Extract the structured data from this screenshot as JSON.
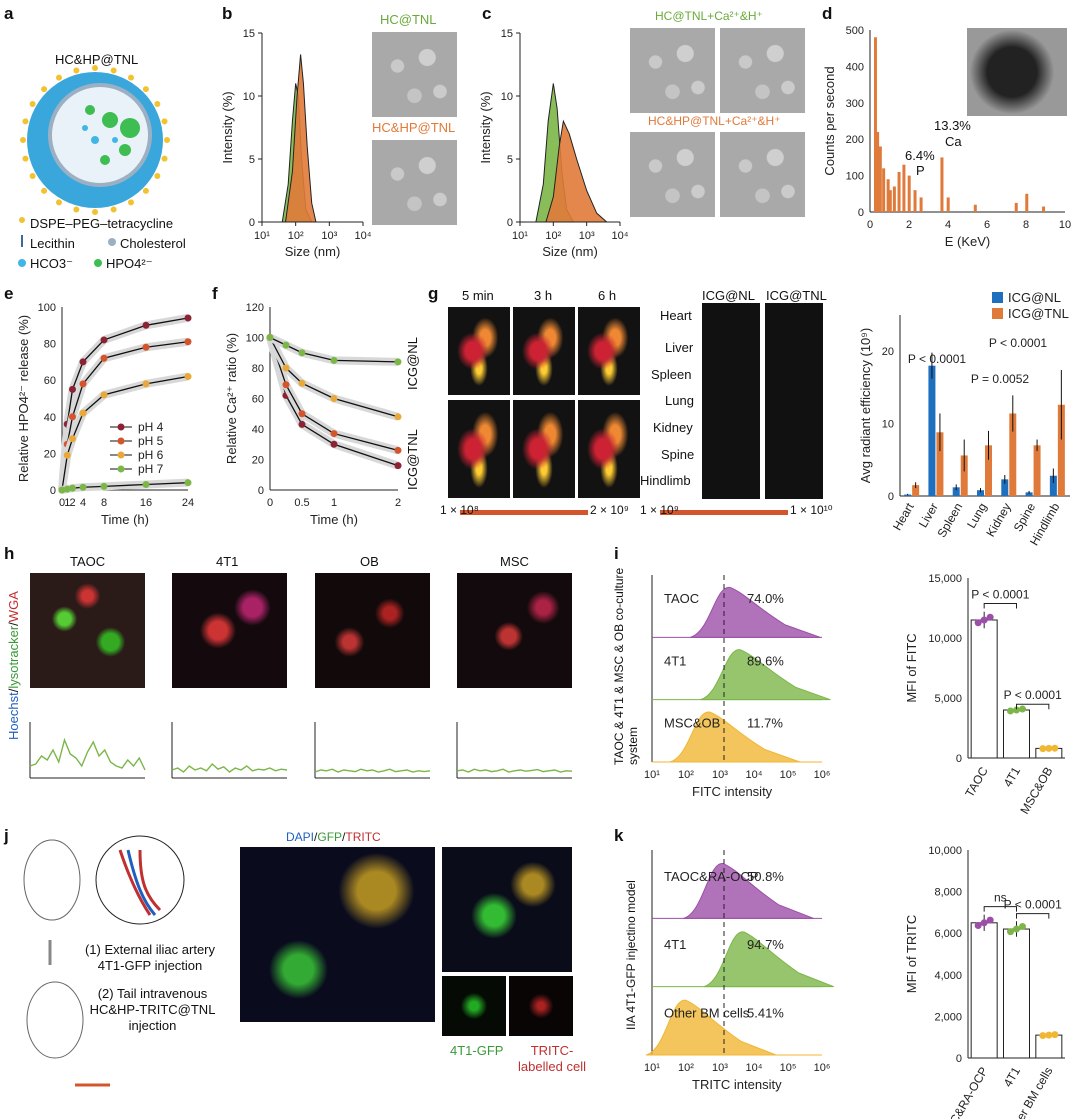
{
  "panels": {
    "a": {
      "letter": "a",
      "title": "HC&HP@TNL",
      "legend": [
        {
          "name": "dspe",
          "text": "DSPE–PEG–tetracycline"
        },
        {
          "name": "lecithin",
          "text": "Lecithin"
        },
        {
          "name": "cholesterol",
          "text": "Cholesterol"
        },
        {
          "name": "hco3",
          "text": "HCO3⁻"
        },
        {
          "name": "hpo4",
          "text": "HPO4²⁻"
        }
      ]
    },
    "b": {
      "letter": "b",
      "label_top": "HC@TNL",
      "label_bottom": "HC&HP@TNL"
    },
    "c": {
      "letter": "c",
      "label_top": "HC@TNL+Ca²⁺&H⁺",
      "label_bottom": "HC&HP@TNL+Ca²⁺&H⁺"
    },
    "d": {
      "letter": "d",
      "annot": [
        {
          "pct": "6.4%",
          "el": "P"
        },
        {
          "pct": "13.3%",
          "el": "Ca"
        }
      ]
    },
    "e": {
      "letter": "e"
    },
    "f": {
      "letter": "f"
    },
    "g": {
      "letter": "g",
      "times": [
        "5 min",
        "3 h",
        "6 h"
      ],
      "rows": [
        "ICG@NL",
        "ICG@TNL"
      ],
      "organ_cols": [
        "ICG@NL",
        "ICG@TNL"
      ],
      "organs": [
        "Heart",
        "Liver",
        "Spleen",
        "Lung",
        "Kidney",
        "Spine",
        "Hindlimb"
      ],
      "scale1": [
        "1 × 10⁸",
        "2 × 10⁹"
      ],
      "scale2": [
        "1 × 10⁹",
        "1 × 10¹⁰"
      ]
    },
    "h": {
      "letter": "h",
      "cols": [
        "TAOC",
        "4T1",
        "OB",
        "MSC"
      ],
      "ylabel_parts": [
        "Hoechst",
        "/",
        "lysotracker",
        "/",
        "WGA"
      ]
    },
    "i": {
      "letter": "i",
      "hist_ylabel": "TAOC & 4T1 & MSC & OB co-culture system"
    },
    "j": {
      "letter": "j",
      "steps": [
        "(1) External iliac artery 4T1-GFP injection",
        "(2) Tail intravenous HC&HP-TRITC@TNL injection"
      ],
      "stain": [
        "DAPI",
        "/",
        "GFP",
        "/",
        "TRITC"
      ],
      "sub_labels": [
        "4T1-GFP",
        "TRITC-labelled cell"
      ]
    },
    "k": {
      "letter": "k",
      "hist_ylabel": "IIA 4T1-GFP injectino model"
    }
  },
  "chart_data": [
    {
      "id": "b",
      "type": "area",
      "xlabel": "Size (nm)",
      "ylabel": "Intensity (%)",
      "xscale": "log",
      "xlim": [
        10,
        10000
      ],
      "ylim": [
        0,
        15
      ],
      "xticks": [
        "10¹",
        "10²",
        "10³",
        "10⁴"
      ],
      "yticks": [
        0,
        5,
        10,
        15
      ],
      "series": [
        {
          "name": "HC@TNL",
          "color": "#7cb648",
          "x": [
            40,
            60,
            80,
            100,
            120,
            150,
            200,
            300
          ],
          "y": [
            0,
            3,
            8,
            11,
            10,
            5,
            1,
            0
          ]
        },
        {
          "name": "HC&HP@TNL",
          "color": "#e07a3a",
          "x": [
            50,
            80,
            110,
            140,
            170,
            220,
            300,
            400
          ],
          "y": [
            0,
            4,
            10,
            13.3,
            11,
            6,
            1.5,
            0
          ]
        }
      ]
    },
    {
      "id": "c",
      "type": "area",
      "xlabel": "Size (nm)",
      "ylabel": "Intensity (%)",
      "xscale": "log",
      "xlim": [
        10,
        10000
      ],
      "ylim": [
        0,
        15
      ],
      "xticks": [
        "10¹",
        "10²",
        "10³",
        "10⁴"
      ],
      "yticks": [
        0,
        5,
        10,
        15
      ],
      "series": [
        {
          "name": "HC@TNL",
          "color": "#7cb648",
          "x": [
            30,
            50,
            70,
            100,
            130,
            180,
            250,
            400
          ],
          "y": [
            0,
            3,
            8,
            11,
            9,
            4,
            1,
            0
          ]
        },
        {
          "name": "HC&HP@TNL",
          "color": "#e07a3a",
          "x": [
            60,
            100,
            150,
            200,
            300,
            500,
            1000,
            2000,
            4000
          ],
          "y": [
            0,
            2,
            6,
            8,
            7,
            5,
            2.5,
            0.7,
            0
          ]
        }
      ]
    },
    {
      "id": "d",
      "type": "bar",
      "xlabel": "E (KeV)",
      "ylabel": "Counts per second",
      "xlim": [
        0,
        10
      ],
      "ylim": [
        0,
        500
      ],
      "xticks": [
        0,
        2,
        4,
        6,
        8,
        10
      ],
      "yticks": [
        0,
        100,
        200,
        300,
        400,
        500
      ],
      "color": "#e07a3a",
      "x": [
        0.28,
        0.39,
        0.53,
        0.7,
        0.93,
        1.04,
        1.25,
        1.49,
        1.74,
        2.01,
        2.31,
        2.62,
        3.69,
        4.01,
        5.4,
        7.5,
        8.04,
        8.9
      ],
      "values": [
        480,
        220,
        180,
        120,
        90,
        60,
        70,
        110,
        130,
        100,
        60,
        40,
        150,
        40,
        20,
        25,
        50,
        15
      ]
    },
    {
      "id": "e",
      "type": "line",
      "xlabel": "Time (h)",
      "ylabel": "Relative HPO4²⁻ release (%)",
      "xlim": [
        0,
        24
      ],
      "ylim": [
        0,
        100
      ],
      "xticks": [
        "0",
        "1",
        "2",
        "4",
        "8",
        "16",
        "24"
      ],
      "xtick_vals": [
        0,
        1,
        2,
        4,
        8,
        16,
        24
      ],
      "yticks": [
        0,
        20,
        40,
        60,
        80,
        100
      ],
      "x": [
        0,
        1,
        2,
        4,
        8,
        16,
        24
      ],
      "series": [
        {
          "name": "pH 4",
          "color": "#8b2335",
          "y": [
            0,
            36,
            55,
            70,
            82,
            90,
            94
          ]
        },
        {
          "name": "pH 5",
          "color": "#d4542c",
          "y": [
            0,
            25,
            40,
            58,
            72,
            78,
            81
          ]
        },
        {
          "name": "pH 6",
          "color": "#e9a83a",
          "y": [
            0,
            19,
            28,
            42,
            52,
            58,
            62
          ]
        },
        {
          "name": "pH 7",
          "color": "#7cb648",
          "y": [
            0,
            0.5,
            1,
            1.5,
            2,
            3,
            4
          ]
        }
      ]
    },
    {
      "id": "f",
      "type": "line",
      "xlabel": "Time (h)",
      "ylabel": "Relative Ca²⁺ ratio (%)",
      "xlim": [
        0,
        2
      ],
      "ylim": [
        0,
        120
      ],
      "xticks": [
        "0",
        "0.5",
        "1",
        "2"
      ],
      "xtick_vals": [
        0,
        0.5,
        1,
        2
      ],
      "yticks": [
        0,
        20,
        40,
        60,
        80,
        100,
        120
      ],
      "x": [
        0,
        0.25,
        0.5,
        1,
        2
      ],
      "series": [
        {
          "name": "pH 4",
          "color": "#8b2335",
          "y": [
            100,
            62,
            43,
            30,
            16
          ]
        },
        {
          "name": "pH 5",
          "color": "#d4542c",
          "y": [
            100,
            69,
            50,
            37,
            26
          ]
        },
        {
          "name": "pH 6",
          "color": "#e9a83a",
          "y": [
            100,
            80,
            70,
            60,
            48
          ]
        },
        {
          "name": "pH 7",
          "color": "#7cb648",
          "y": [
            100,
            95,
            90,
            85,
            84
          ]
        }
      ]
    },
    {
      "id": "g",
      "type": "bar",
      "ylabel": "Avg radiant efficiency (10⁹)",
      "ylim": [
        0,
        25
      ],
      "yticks": [
        0,
        10,
        20
      ],
      "categories": [
        "Heart",
        "Liver",
        "Spleen",
        "Lung",
        "Kidney",
        "Spine",
        "Hindlimb"
      ],
      "series": [
        {
          "name": "ICG@NL",
          "color": "#1f6fbf",
          "values": [
            0.2,
            18,
            1.2,
            0.8,
            2.3,
            0.5,
            2.8
          ],
          "err": [
            0.1,
            1.8,
            0.4,
            0.3,
            0.6,
            0.2,
            1.0
          ]
        },
        {
          "name": "ICG@TNL",
          "color": "#e07a3a",
          "values": [
            1.5,
            8.8,
            5.6,
            7.0,
            11.4,
            7.0,
            12.6
          ],
          "err": [
            0.4,
            2.6,
            2.2,
            2.0,
            2.5,
            0.8,
            4.8
          ]
        }
      ],
      "pvals": [
        {
          "text": "P < 0.0001",
          "pair": "Liver"
        },
        {
          "text": "P = 0.0052",
          "pair": "Kidney"
        },
        {
          "text": "P < 0.0001",
          "pair": "Hindlimb"
        }
      ]
    },
    {
      "id": "h",
      "type": "line",
      "color": "#7cb648",
      "series": [
        {
          "name": "TAOC",
          "y": [
            0.3,
            0.35,
            0.55,
            0.45,
            0.7,
            0.4,
            0.95,
            0.6,
            0.5,
            0.3,
            0.65,
            0.9,
            0.55,
            0.7,
            0.4,
            0.3,
            0.25,
            0.45,
            0.3,
            0.5,
            0.2
          ]
        },
        {
          "name": "4T1",
          "y": [
            0.2,
            0.25,
            0.15,
            0.3,
            0.2,
            0.25,
            0.18,
            0.35,
            0.22,
            0.28,
            0.15,
            0.25,
            0.2,
            0.3,
            0.18,
            0.22,
            0.2,
            0.25,
            0.18,
            0.22,
            0.2
          ]
        },
        {
          "name": "OB",
          "y": [
            0.15,
            0.2,
            0.18,
            0.22,
            0.15,
            0.2,
            0.18,
            0.16,
            0.22,
            0.18,
            0.2,
            0.15,
            0.18,
            0.22,
            0.16,
            0.18,
            0.2,
            0.15,
            0.18,
            0.16,
            0.18
          ]
        },
        {
          "name": "MSC",
          "y": [
            0.18,
            0.2,
            0.15,
            0.22,
            0.18,
            0.2,
            0.16,
            0.18,
            0.22,
            0.15,
            0.18,
            0.2,
            0.17,
            0.19,
            0.21,
            0.16,
            0.18,
            0.2,
            0.15,
            0.18,
            0.17
          ]
        }
      ]
    },
    {
      "id": "i-hist",
      "type": "area",
      "xlabel": "FITC intensity",
      "xticks": [
        "10¹",
        "10²",
        "10³",
        "10⁴",
        "10⁵",
        "10⁶"
      ],
      "rows": [
        {
          "name": "TAOC",
          "pct": "74.0%",
          "color": "#9c4fa8"
        },
        {
          "name": "4T1",
          "pct": "89.6%",
          "color": "#7cb648"
        },
        {
          "name": "MSC&OB",
          "pct": "11.7%",
          "color": "#f0b733"
        }
      ]
    },
    {
      "id": "i-bar",
      "type": "bar",
      "ylabel": "MFI of FITC",
      "ylim": [
        0,
        15000
      ],
      "yticks": [
        "0",
        "5,000",
        "10,000",
        "15,000"
      ],
      "categories": [
        "TAOC",
        "4T1",
        "MSC&OB"
      ],
      "values": [
        11500,
        4000,
        800
      ],
      "colors": [
        "#9c4fa8",
        "#7cb648",
        "#f0b733"
      ],
      "pvals": [
        "P < 0.0001",
        "P < 0.0001"
      ]
    },
    {
      "id": "k-hist",
      "type": "area",
      "xlabel": "TRITC intensity",
      "xticks": [
        "10¹",
        "10²",
        "10³",
        "10⁴",
        "10⁵",
        "10⁶"
      ],
      "rows": [
        {
          "name": "TAOC&RA-OCP",
          "pct": "50.8%",
          "color": "#9c4fa8"
        },
        {
          "name": "4T1",
          "pct": "94.7%",
          "color": "#7cb648"
        },
        {
          "name": "Other BM cells",
          "pct": "5.41%",
          "color": "#f0b733"
        }
      ]
    },
    {
      "id": "k-bar",
      "type": "bar",
      "ylabel": "MFI of TRITC",
      "ylim": [
        0,
        10000
      ],
      "yticks": [
        "0",
        "2,000",
        "4,000",
        "6,000",
        "8,000",
        "10,000"
      ],
      "categories": [
        "TAOC&RA-OCP",
        "4T1",
        "Other BM cells"
      ],
      "values": [
        6500,
        6200,
        1100
      ],
      "colors": [
        "#9c4fa8",
        "#7cb648",
        "#f0b733"
      ],
      "pvals": [
        "ns",
        "P < 0.0001"
      ]
    }
  ]
}
